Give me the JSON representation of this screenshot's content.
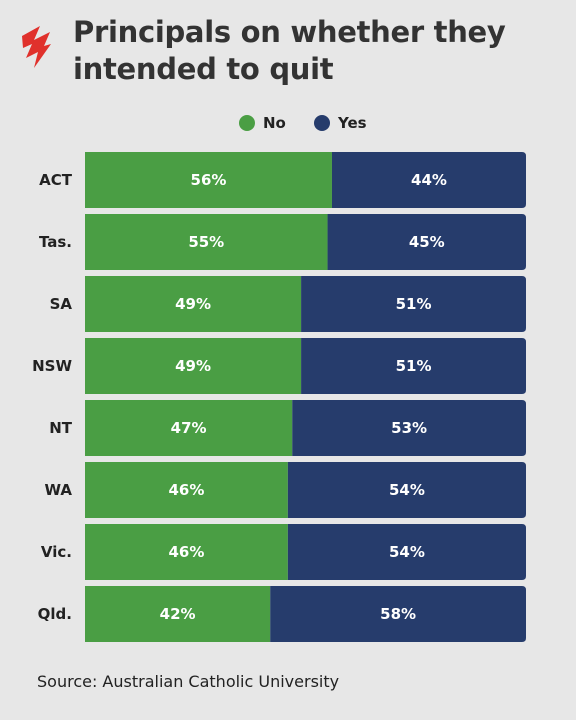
{
  "title": "Principals on whether they intended to quit",
  "source": "Source: Australian Catholic University",
  "colors": {
    "no": "#4a9e44",
    "yes": "#263c6c",
    "logo": "#e0312c",
    "title": "#333333",
    "background": "#e7e7e7"
  },
  "logo_icon": "sbs-spark-logo",
  "chart_data": {
    "type": "bar",
    "orientation": "horizontal",
    "stacked": true,
    "title": "Principals on whether they intended to quit",
    "categories": [
      "ACT",
      "Tas.",
      "SA",
      "NSW",
      "NT",
      "WA",
      "Vic.",
      "Qld."
    ],
    "series": [
      {
        "name": "No",
        "values": [
          56,
          55,
          49,
          49,
          47,
          46,
          46,
          42
        ],
        "labels": [
          "56%",
          "55%",
          "49%",
          "49%",
          "47%",
          "46%",
          "46%",
          "42%"
        ]
      },
      {
        "name": "Yes",
        "values": [
          44,
          45,
          51,
          51,
          53,
          54,
          54,
          58
        ],
        "labels": [
          "44%",
          "45%",
          "51%",
          "51%",
          "53%",
          "54%",
          "54%",
          "58%"
        ]
      }
    ],
    "xlim": [
      0,
      100
    ],
    "legend": "top-center",
    "grid": false
  }
}
